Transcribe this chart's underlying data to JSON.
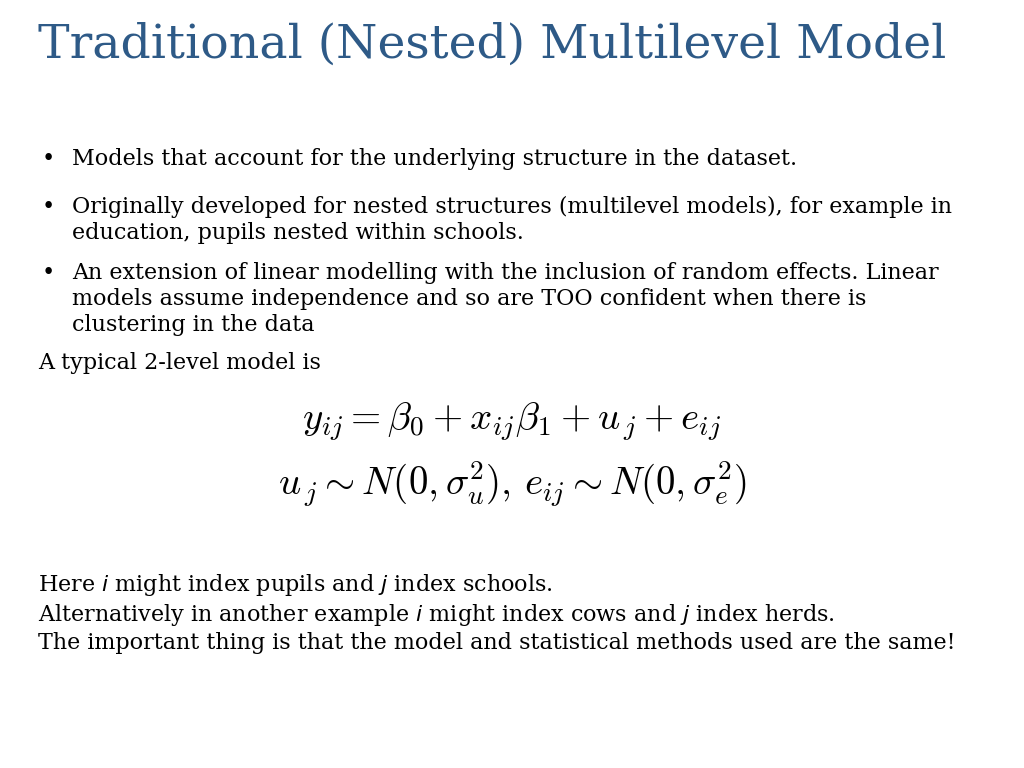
{
  "title": "Traditional (Nested) Multilevel Model",
  "title_color": "#2E5A87",
  "title_fontsize": 34,
  "background_color": "#FFFFFF",
  "bullet1": "Models that account for the underlying structure in the dataset.",
  "bullet2_line1": "Originally developed for nested structures (multilevel models), for example in",
  "bullet2_line2": "education, pupils nested within schools.",
  "bullet3_line1": "An extension of linear modelling with the inclusion of random effects. Linear",
  "bullet3_line2": "models assume independence and so are TOO confident when there is",
  "bullet3_line3": "clustering in the data",
  "typical_model_text": "A typical 2-level model is",
  "text_color": "#000000",
  "body_fontsize": 16,
  "formula_fontsize": 28,
  "footer_fontsize": 16
}
